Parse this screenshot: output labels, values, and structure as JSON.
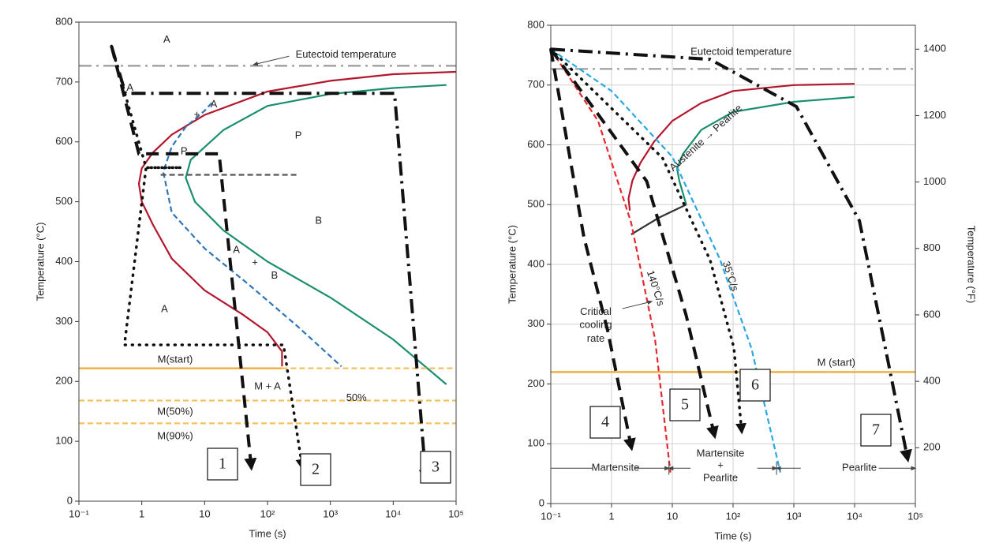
{
  "chart_data": [
    {
      "type": "line",
      "xscale": "log",
      "xlabel": "Time (s)",
      "ylabel": "Temperature (°C)",
      "xlim": [
        0.1,
        100000
      ],
      "ylim": [
        0,
        800
      ],
      "xticks": [
        {
          "value": 0.1,
          "label": "10⁻¹"
        },
        1,
        10,
        {
          "value": 100,
          "label": "10²"
        },
        {
          "value": 1000,
          "label": "10³"
        },
        {
          "value": 10000,
          "label": "10⁴"
        },
        {
          "value": 100000,
          "label": "10⁵"
        }
      ],
      "yticks": [
        0,
        100,
        200,
        300,
        400,
        500,
        600,
        700,
        800
      ],
      "grid": false,
      "series": [
        {
          "color": "#9a9a9a",
          "style": "dashdot",
          "x": [
            0.1,
            100000
          ],
          "values": [
            727,
            727
          ]
        },
        {
          "color": "#b3172d",
          "style": "solid",
          "x": [
            100000,
            10000,
            1000,
            100,
            10,
            3,
            1.5,
            1,
            0.9,
            1,
            1.5,
            3,
            10,
            40,
            100,
            170,
            170
          ],
          "values": [
            717,
            713,
            702,
            684,
            645,
            612,
            582,
            556,
            530,
            500,
            462,
            405,
            352,
            312,
            282,
            250,
            225
          ]
        },
        {
          "color": "#2e75b6",
          "style": "dashed",
          "x": [
            13,
            10,
            5,
            3,
            2.2,
            3,
            10,
            50,
            300,
            1500
          ],
          "values": [
            665,
            652,
            625,
            592,
            550,
            482,
            422,
            362,
            292,
            225
          ]
        },
        {
          "color": "#1a8f6e",
          "style": "solid",
          "x": [
            70000,
            10000,
            1000,
            100,
            20,
            6,
            5,
            7,
            20,
            100,
            1000,
            10000,
            70000
          ],
          "values": [
            695,
            690,
            680,
            660,
            620,
            570,
            540,
            500,
            452,
            400,
            340,
            270,
            195
          ]
        },
        {
          "color": "#555555",
          "style": "dashed",
          "x": [
            2,
            300
          ],
          "values": [
            545,
            545
          ]
        },
        {
          "color": "#f0a830",
          "style": "solid",
          "x": [
            0.1,
            170
          ],
          "values": [
            222,
            222
          ]
        },
        {
          "color": "#f5c060",
          "style": "dashed",
          "x": [
            170,
            100000
          ],
          "values": [
            222,
            222
          ]
        },
        {
          "color": "#f5c060",
          "style": "dashed",
          "x": [
            0.1,
            100000
          ],
          "values": [
            168,
            168
          ]
        },
        {
          "color": "#f5c060",
          "style": "dashed",
          "x": [
            0.1,
            100000
          ],
          "values": [
            130,
            130
          ]
        }
      ],
      "annotations": [
        "A",
        "Eutectoid temperature",
        "A",
        "+",
        "A",
        "P",
        "P",
        "B",
        "A",
        "+",
        "B",
        "A",
        "M(start)",
        "M + A",
        "50%",
        "M(50%)",
        "M(90%)"
      ],
      "cooling_paths": [
        {
          "label": "1",
          "style": "dashed",
          "x": [
            0.33,
            0.9,
            17,
            55
          ],
          "values": [
            760,
            580,
            580,
            59
          ]
        },
        {
          "label": "2",
          "style": "dotted",
          "x": [
            0.33,
            1.17,
            4.3,
            1.17,
            0.53,
            180,
            355
          ],
          "values": [
            760,
            557,
            557,
            557,
            261,
            261,
            59
          ]
        },
        {
          "label": "3",
          "style": "dashdot",
          "x": [
            0.33,
            0.55,
            10500,
            33000
          ],
          "values": [
            760,
            681,
            681,
            40
          ]
        }
      ]
    },
    {
      "type": "line",
      "xscale": "log",
      "xlabel": "Time (s)",
      "ylabel": "Temperature (°C)",
      "y2label": "Temperature (°F)",
      "xlim": [
        0.1,
        100000
      ],
      "ylim": [
        0,
        800
      ],
      "y2lim": [
        32,
        1472
      ],
      "xticks": [
        {
          "value": 0.1,
          "label": "10⁻¹"
        },
        1,
        10,
        {
          "value": 100,
          "label": "10²"
        },
        {
          "value": 1000,
          "label": "10³"
        },
        {
          "value": 10000,
          "label": "10⁴"
        },
        {
          "value": 100000,
          "label": "10⁵"
        }
      ],
      "yticks": [
        0,
        100,
        200,
        300,
        400,
        500,
        600,
        700,
        800
      ],
      "y2ticks": [
        200,
        400,
        600,
        800,
        1000,
        1200,
        1400
      ],
      "grid": true,
      "series": [
        {
          "color": "#9a9a9a",
          "style": "dashdot",
          "x": [
            0.1,
            100000
          ],
          "values": [
            727,
            727
          ]
        },
        {
          "color": "#b3172d",
          "style": "solid",
          "x": [
            10000,
            1000,
            100,
            30,
            10,
            5,
            3,
            2.2,
            1.9,
            2
          ],
          "values": [
            702,
            700,
            690,
            670,
            640,
            605,
            570,
            540,
            510,
            490
          ]
        },
        {
          "color": "#1a8f6e",
          "style": "solid",
          "x": [
            10000,
            1000,
            100,
            30,
            15,
            12,
            13,
            17
          ],
          "values": [
            680,
            672,
            655,
            625,
            585,
            560,
            540,
            500
          ]
        },
        {
          "color": "#333333",
          "style": "solid",
          "x": [
            2.1,
            6,
            17
          ],
          "values": [
            450,
            478,
            500
          ]
        },
        {
          "color": "#e8262b",
          "style": "dashed",
          "x": [
            0.1,
            0.6,
            2.1,
            5.2,
            9.3
          ],
          "values": [
            760,
            640,
            470,
            275,
            52
          ]
        },
        {
          "color": "#29a8e0",
          "style": "dashed",
          "x": [
            0.1,
            1,
            10,
            60,
            200,
            600
          ],
          "values": [
            760,
            690,
            580,
            410,
            260,
            52
          ]
        },
        {
          "color": "#f0a830",
          "style": "solid",
          "x": [
            0.1,
            100000
          ],
          "values": [
            220,
            220
          ]
        }
      ],
      "annotations": [
        "Eutectoid temperature",
        "Austenite → Pearlite",
        "140°C/s",
        "35°C/s",
        "Critical",
        "cooling",
        "rate",
        "M (start)",
        "Martensite",
        "Martensite",
        "+",
        "Pearlite",
        "Pearlite"
      ],
      "cooling_paths": [
        {
          "label": "4",
          "style": "dashed",
          "x": [
            0.1,
            0.35,
            0.87,
            2.1
          ],
          "values": [
            760,
            446,
            288,
            96
          ]
        },
        {
          "label": "5",
          "style": "dashed",
          "x": [
            0.1,
            3.8,
            17,
            49
          ],
          "values": [
            760,
            539,
            314,
            116
          ]
        },
        {
          "label": "6",
          "style": "dotted",
          "x": [
            0.1,
            6.9,
            42,
            103,
            138
          ],
          "values": [
            760,
            578,
            407,
            261,
            123
          ]
        },
        {
          "label": "7",
          "style": "dashdot",
          "x": [
            0.1,
            42,
            1100,
            12000,
            30000,
            74000
          ],
          "values": [
            760,
            743,
            664,
            473,
            275,
            77
          ]
        }
      ]
    }
  ]
}
